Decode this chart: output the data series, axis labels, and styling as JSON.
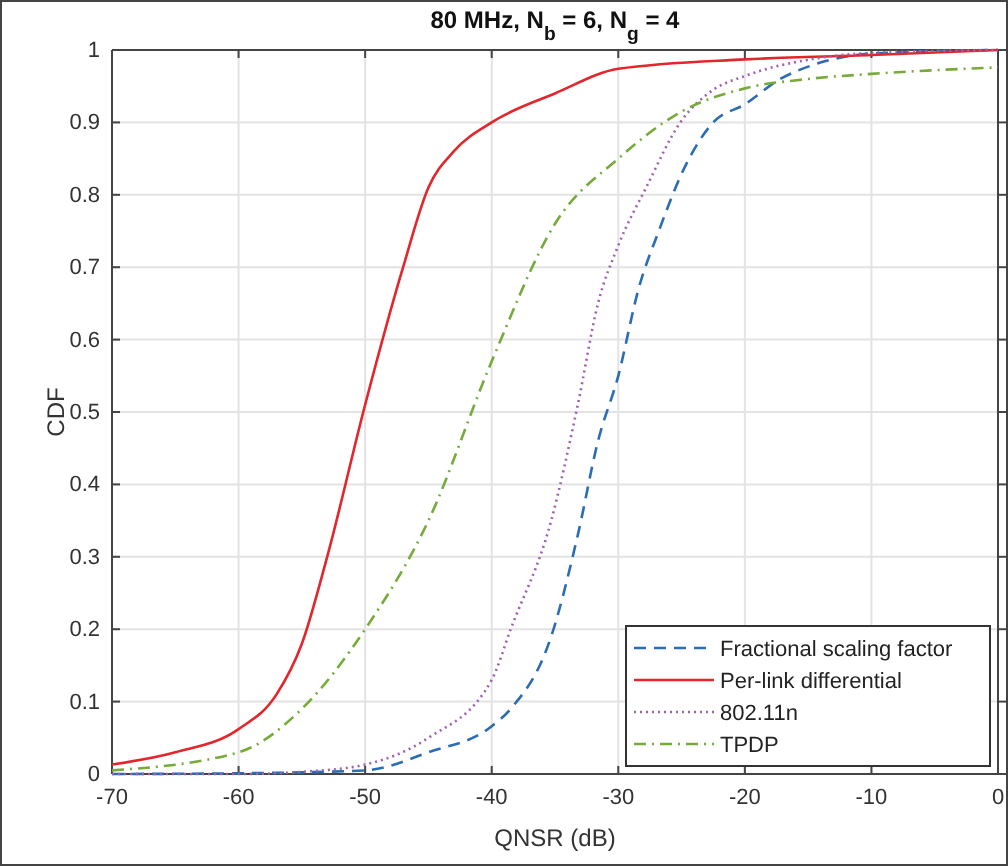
{
  "chart_data": {
    "type": "line",
    "title": "80 MHz, N$_{b}$ = 6, N$_{g}$ = 4",
    "xlabel": "QNSR (dB)",
    "ylabel": "CDF",
    "xlim": [
      -70,
      0
    ],
    "xticks": [
      -70,
      -60,
      -50,
      -40,
      -30,
      -20,
      -10,
      0
    ],
    "ylim": [
      0,
      1
    ],
    "yticks": [
      0,
      0.1,
      0.2,
      0.3,
      0.4,
      0.5,
      0.6,
      0.7,
      0.8,
      0.9,
      1
    ],
    "grid": true,
    "legend": "bottom right",
    "marker": "none",
    "series": [
      {
        "name": "Fractional scaling factor",
        "color": "#2a6db5",
        "line_style": "dashed",
        "x": [
          -70,
          -60,
          -50,
          -45,
          -40,
          -38.5,
          -35.3,
          -33.2,
          -31.6,
          -30,
          -28.4,
          -26.8,
          -24.7,
          -22.5,
          -20,
          -17.2,
          -14.5,
          -10,
          0
        ],
        "values": [
          0,
          0.001,
          0.005,
          0.03,
          0.066,
          0.09,
          0.19,
          0.33,
          0.46,
          0.55,
          0.67,
          0.75,
          0.84,
          0.9,
          0.925,
          0.96,
          0.98,
          0.995,
          1
        ]
      },
      {
        "name": "Per-link differential",
        "color": "#e3262b",
        "line_style": "solid",
        "x": [
          -70,
          -65,
          -60,
          -57,
          -55,
          -53,
          -50,
          -47,
          -45,
          -43,
          -40,
          -35,
          -30,
          -20,
          -10,
          0
        ],
        "values": [
          0.013,
          0.03,
          0.062,
          0.11,
          0.18,
          0.3,
          0.51,
          0.7,
          0.81,
          0.86,
          0.9,
          0.94,
          0.974,
          0.987,
          0.993,
          1
        ]
      },
      {
        "name": "802.11n",
        "color": "#a060b0",
        "line_style": "dotted",
        "x": [
          -70,
          -60,
          -55,
          -50,
          -45,
          -40,
          -38.5,
          -35.3,
          -33.2,
          -31.6,
          -30,
          -27.8,
          -25.1,
          -22.5,
          -20,
          -14.5,
          -10,
          0
        ],
        "values": [
          0,
          0,
          0.003,
          0.013,
          0.05,
          0.13,
          0.2,
          0.35,
          0.51,
          0.65,
          0.73,
          0.81,
          0.9,
          0.945,
          0.964,
          0.988,
          0.996,
          1
        ]
      },
      {
        "name": "TPDP",
        "color": "#76ab3a",
        "line_style": "dashdot",
        "x": [
          -70,
          -60,
          -55,
          -50,
          -45,
          -40,
          -35,
          -30,
          -25,
          -20,
          -15,
          -10,
          0
        ],
        "values": [
          0.005,
          0.03,
          0.09,
          0.2,
          0.35,
          0.57,
          0.76,
          0.85,
          0.915,
          0.947,
          0.96,
          0.967,
          0.976
        ]
      }
    ]
  }
}
